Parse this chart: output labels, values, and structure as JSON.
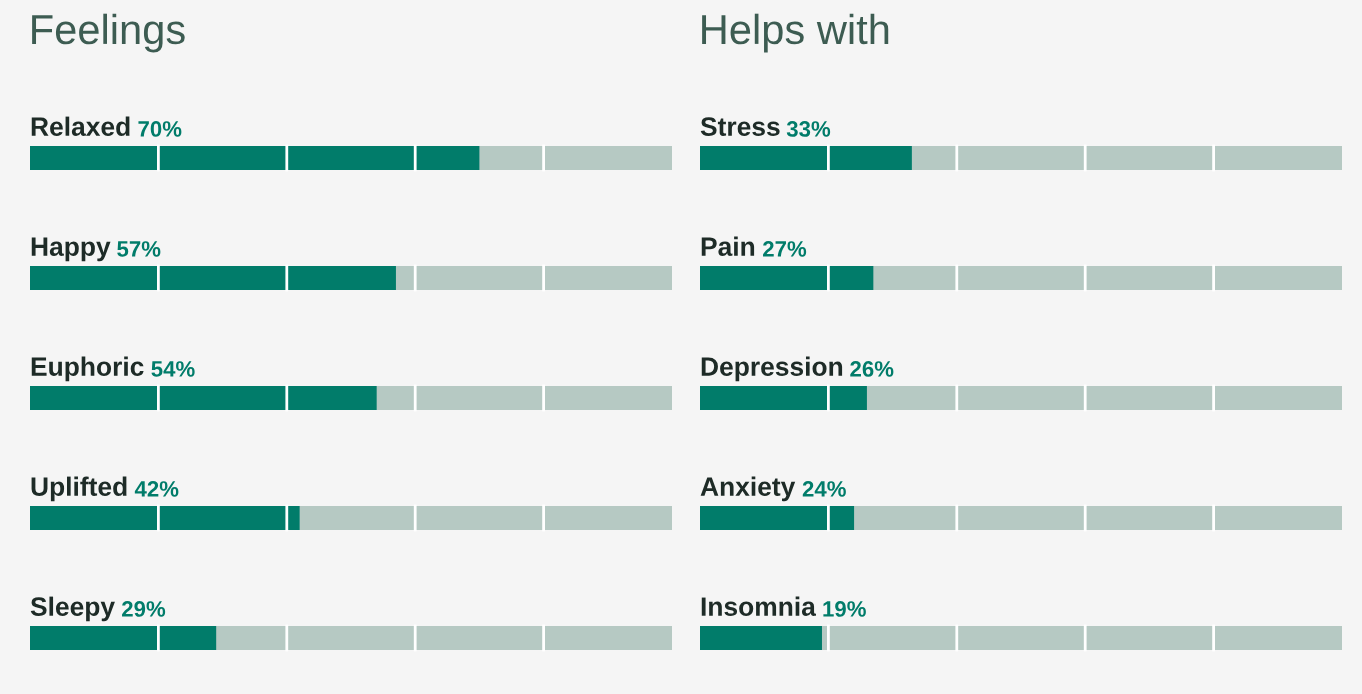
{
  "chart_data": [
    {
      "type": "bar",
      "title": "Feelings",
      "orientation": "horizontal",
      "categories": [
        "Relaxed",
        "Happy",
        "Euphoric",
        "Uplifted",
        "Sleepy"
      ],
      "series": [
        {
          "color": "#017c6a",
          "values": [
            70,
            57,
            54,
            42,
            29
          ],
          "value_labels": [
            "70%",
            "57%",
            "54%",
            "42%",
            "29%"
          ]
        }
      ],
      "xlim": [
        0,
        100
      ],
      "tick_labels": false
    },
    {
      "type": "bar",
      "title": "Helps with",
      "orientation": "horizontal",
      "categories": [
        "Stress",
        "Pain",
        "Depression",
        "Anxiety",
        "Insomnia"
      ],
      "series": [
        {
          "color": "#017c6a",
          "values": [
            33,
            27,
            26,
            24,
            19
          ],
          "value_labels": [
            "33%",
            "27%",
            "26%",
            "24%",
            "19%"
          ]
        }
      ],
      "xlim": [
        0,
        100
      ],
      "tick_labels": false
    }
  ]
}
